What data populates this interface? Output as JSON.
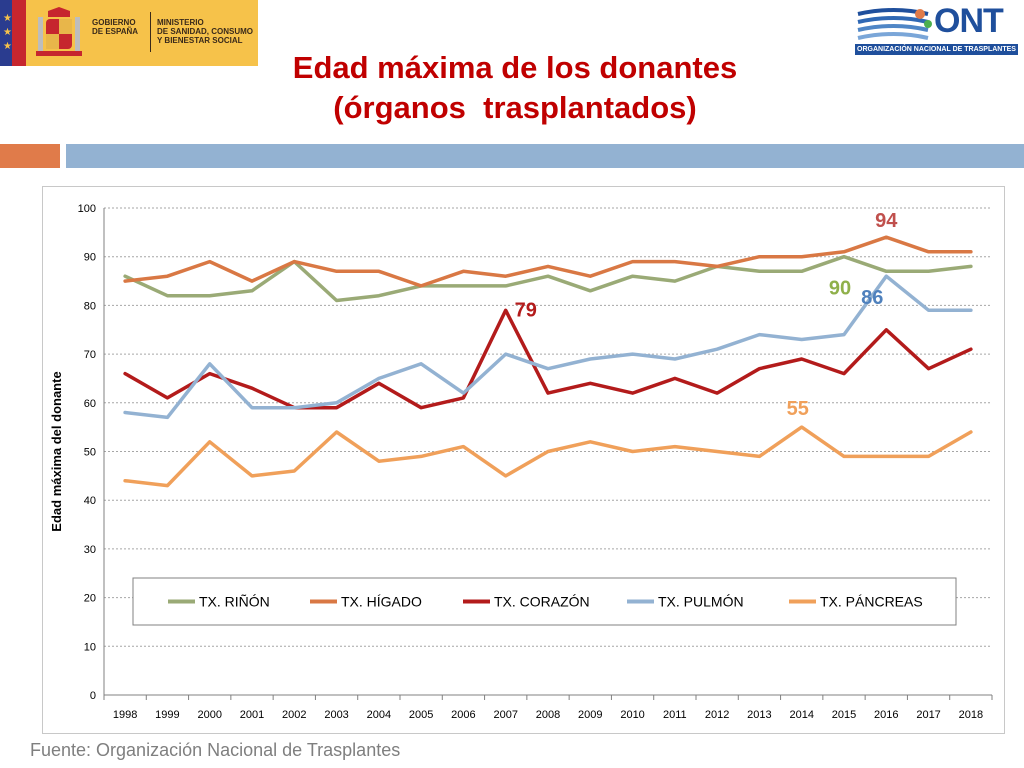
{
  "header": {
    "government": "GOBIERNO\nDE ESPAÑA",
    "ministry": "MINISTERIO\nDE SANIDAD, CONSUMO\nY BIENESTAR SOCIAL",
    "ont_logo_text": "ONT",
    "ont_band": "ORGANIZACIÓN NACIONAL DE TRASPLANTES"
  },
  "title_line1": "Edad máxima de los donantes",
  "title_line2": "(órganos  trasplantados)",
  "source": "Fuente: Organización Nacional de Trasplantes",
  "colors": {
    "title": "#c00000",
    "accent_orange": "#e07b4a",
    "accent_blue": "#93b2d2"
  },
  "chart_data": {
    "type": "line",
    "title": "",
    "xlabel": "",
    "ylabel": "Edad máxima del donante",
    "ylim": [
      0,
      100
    ],
    "yticks": [
      0,
      10,
      20,
      30,
      40,
      50,
      60,
      70,
      80,
      90,
      100
    ],
    "grid": true,
    "legend_position": "bottom-inside",
    "categories": [
      "1998",
      "1999",
      "2000",
      "2001",
      "2002",
      "2003",
      "2004",
      "2005",
      "2006",
      "2007",
      "2008",
      "2009",
      "2010",
      "2011",
      "2012",
      "2013",
      "2014",
      "2015",
      "2016",
      "2017",
      "2018"
    ],
    "series": [
      {
        "name": "TX. RIÑÓN",
        "color": "#9aaa76",
        "values": [
          86,
          82,
          82,
          83,
          89,
          81,
          82,
          84,
          84,
          84,
          86,
          83,
          86,
          85,
          88,
          87,
          87,
          90,
          87,
          87,
          88
        ]
      },
      {
        "name": "TX. HÍGADO",
        "color": "#d97844",
        "values": [
          85,
          86,
          89,
          85,
          89,
          87,
          87,
          84,
          87,
          86,
          88,
          86,
          89,
          89,
          88,
          90,
          90,
          91,
          94,
          91,
          91
        ]
      },
      {
        "name": "TX. CORAZÓN",
        "color": "#b31b1b",
        "values": [
          66,
          61,
          66,
          63,
          59,
          59,
          64,
          59,
          61,
          79,
          62,
          64,
          62,
          65,
          62,
          67,
          69,
          66,
          75,
          67,
          71
        ]
      },
      {
        "name": "TX. PULMÓN",
        "color": "#93b2d2",
        "values": [
          58,
          57,
          68,
          59,
          59,
          60,
          65,
          68,
          62,
          70,
          67,
          69,
          70,
          69,
          71,
          74,
          73,
          74,
          86,
          79,
          79
        ]
      },
      {
        "name": "TX. PÁNCREAS",
        "color": "#f0a05a",
        "values": [
          44,
          43,
          52,
          45,
          46,
          54,
          48,
          49,
          51,
          45,
          50,
          52,
          50,
          51,
          50,
          49,
          55,
          49,
          49,
          49,
          54
        ]
      }
    ],
    "annotations": [
      {
        "text": "94",
        "x": "2016",
        "y": 94,
        "color": "#c0504d"
      },
      {
        "text": "90",
        "x": "2015",
        "y": 90,
        "color": "#8fb04a"
      },
      {
        "text": "86",
        "x": "2016",
        "y": 86,
        "color": "#4f81bd"
      },
      {
        "text": "79",
        "x": "2007",
        "y": 79,
        "color": "#b31b1b"
      },
      {
        "text": "55",
        "x": "2014",
        "y": 55,
        "color": "#f0a05a"
      }
    ]
  }
}
